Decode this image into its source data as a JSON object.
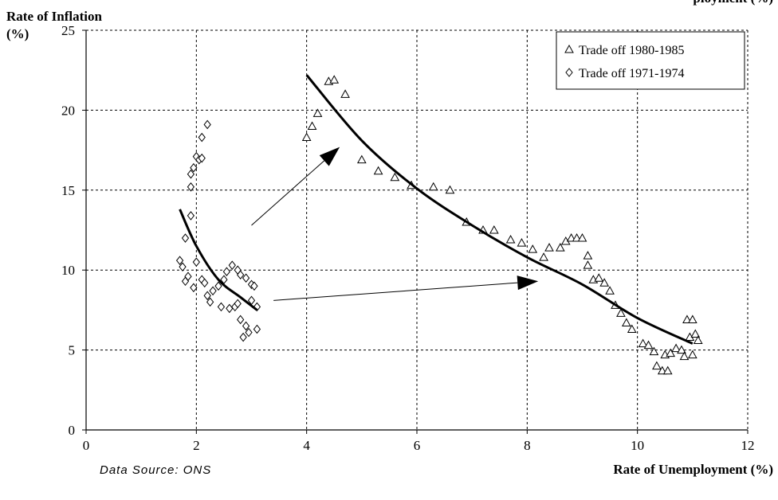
{
  "chart_data": {
    "type": "scatter",
    "ylabel_line1": "Rate of Inflation",
    "ylabel_line2": "(%)",
    "xlabel": "Rate of Unemployment (%)",
    "top_cut_text": "ployment (%)",
    "source": "Data Source:  ONS",
    "xlim": [
      0,
      12
    ],
    "ylim": [
      0,
      25
    ],
    "x_ticks": [
      "0",
      "2",
      "4",
      "6",
      "8",
      "10",
      "12"
    ],
    "y_ticks": [
      "0",
      "5",
      "10",
      "15",
      "20",
      "25"
    ],
    "grid": true,
    "legend_position": "top-right",
    "series": [
      {
        "name": "Trade off 1980-1985",
        "marker": "triangle",
        "points": [
          [
            4.0,
            18.3
          ],
          [
            4.1,
            19.0
          ],
          [
            4.2,
            19.8
          ],
          [
            4.4,
            21.8
          ],
          [
            4.5,
            21.9
          ],
          [
            4.7,
            21.0
          ],
          [
            5.0,
            16.9
          ],
          [
            5.3,
            16.2
          ],
          [
            5.6,
            15.8
          ],
          [
            5.9,
            15.3
          ],
          [
            6.3,
            15.2
          ],
          [
            6.6,
            15.0
          ],
          [
            6.9,
            13.0
          ],
          [
            7.2,
            12.5
          ],
          [
            7.4,
            12.5
          ],
          [
            7.7,
            11.9
          ],
          [
            7.9,
            11.7
          ],
          [
            8.1,
            11.3
          ],
          [
            8.3,
            10.8
          ],
          [
            8.4,
            11.4
          ],
          [
            8.6,
            11.4
          ],
          [
            8.7,
            11.8
          ],
          [
            8.8,
            12.0
          ],
          [
            8.9,
            12.0
          ],
          [
            9.0,
            12.0
          ],
          [
            9.1,
            10.9
          ],
          [
            9.1,
            10.3
          ],
          [
            9.2,
            9.4
          ],
          [
            9.3,
            9.5
          ],
          [
            9.4,
            9.2
          ],
          [
            9.5,
            8.7
          ],
          [
            9.6,
            7.8
          ],
          [
            9.7,
            7.3
          ],
          [
            9.8,
            6.7
          ],
          [
            9.9,
            6.3
          ],
          [
            10.1,
            5.4
          ],
          [
            10.2,
            5.3
          ],
          [
            10.3,
            4.9
          ],
          [
            10.35,
            4.0
          ],
          [
            10.45,
            3.7
          ],
          [
            10.5,
            4.7
          ],
          [
            10.55,
            3.7
          ],
          [
            10.6,
            4.8
          ],
          [
            10.7,
            5.1
          ],
          [
            10.8,
            5.0
          ],
          [
            10.85,
            4.6
          ],
          [
            10.9,
            6.9
          ],
          [
            10.95,
            5.8
          ],
          [
            11.0,
            6.9
          ],
          [
            11.05,
            6.0
          ],
          [
            11.1,
            5.6
          ],
          [
            11.0,
            4.7
          ]
        ]
      },
      {
        "name": "Trade off 1971-1974",
        "marker": "diamond",
        "points": [
          [
            1.7,
            10.6
          ],
          [
            1.75,
            10.2
          ],
          [
            1.8,
            12.0
          ],
          [
            1.8,
            9.3
          ],
          [
            1.85,
            9.6
          ],
          [
            1.9,
            13.4
          ],
          [
            1.9,
            15.2
          ],
          [
            1.9,
            16.0
          ],
          [
            1.95,
            16.4
          ],
          [
            1.95,
            8.9
          ],
          [
            2.0,
            17.1
          ],
          [
            2.0,
            10.5
          ],
          [
            2.05,
            16.9
          ],
          [
            2.1,
            18.3
          ],
          [
            2.1,
            17.0
          ],
          [
            2.1,
            9.4
          ],
          [
            2.15,
            9.2
          ],
          [
            2.2,
            19.1
          ],
          [
            2.2,
            8.4
          ],
          [
            2.25,
            8.0
          ],
          [
            2.3,
            8.7
          ],
          [
            2.4,
            9.0
          ],
          [
            2.45,
            7.7
          ],
          [
            2.5,
            9.4
          ],
          [
            2.55,
            9.9
          ],
          [
            2.6,
            7.6
          ],
          [
            2.65,
            10.3
          ],
          [
            2.7,
            7.7
          ],
          [
            2.75,
            10.0
          ],
          [
            2.75,
            7.9
          ],
          [
            2.8,
            9.7
          ],
          [
            2.8,
            6.9
          ],
          [
            2.85,
            5.8
          ],
          [
            2.9,
            9.5
          ],
          [
            2.9,
            6.5
          ],
          [
            2.95,
            6.1
          ],
          [
            3.0,
            9.1
          ],
          [
            3.0,
            8.1
          ],
          [
            3.05,
            9.0
          ],
          [
            3.1,
            6.3
          ],
          [
            3.1,
            7.7
          ]
        ]
      }
    ],
    "trend_lines": [
      {
        "points": [
          [
            1.7,
            13.8
          ],
          [
            2.0,
            11.5
          ],
          [
            2.4,
            9.4
          ],
          [
            2.8,
            8.3
          ],
          [
            3.1,
            7.5
          ]
        ]
      },
      {
        "points": [
          [
            4.0,
            22.2
          ],
          [
            5.0,
            18.1
          ],
          [
            6.0,
            15.1
          ],
          [
            7.0,
            12.8
          ],
          [
            8.0,
            10.8
          ],
          [
            9.0,
            9.1
          ],
          [
            10.0,
            7.0
          ],
          [
            11.0,
            5.4
          ]
        ]
      }
    ],
    "arrows": [
      {
        "from": [
          3.0,
          12.8
        ],
        "to": [
          4.6,
          17.7
        ]
      },
      {
        "from": [
          3.4,
          8.1
        ],
        "to": [
          8.2,
          9.3
        ]
      }
    ]
  }
}
